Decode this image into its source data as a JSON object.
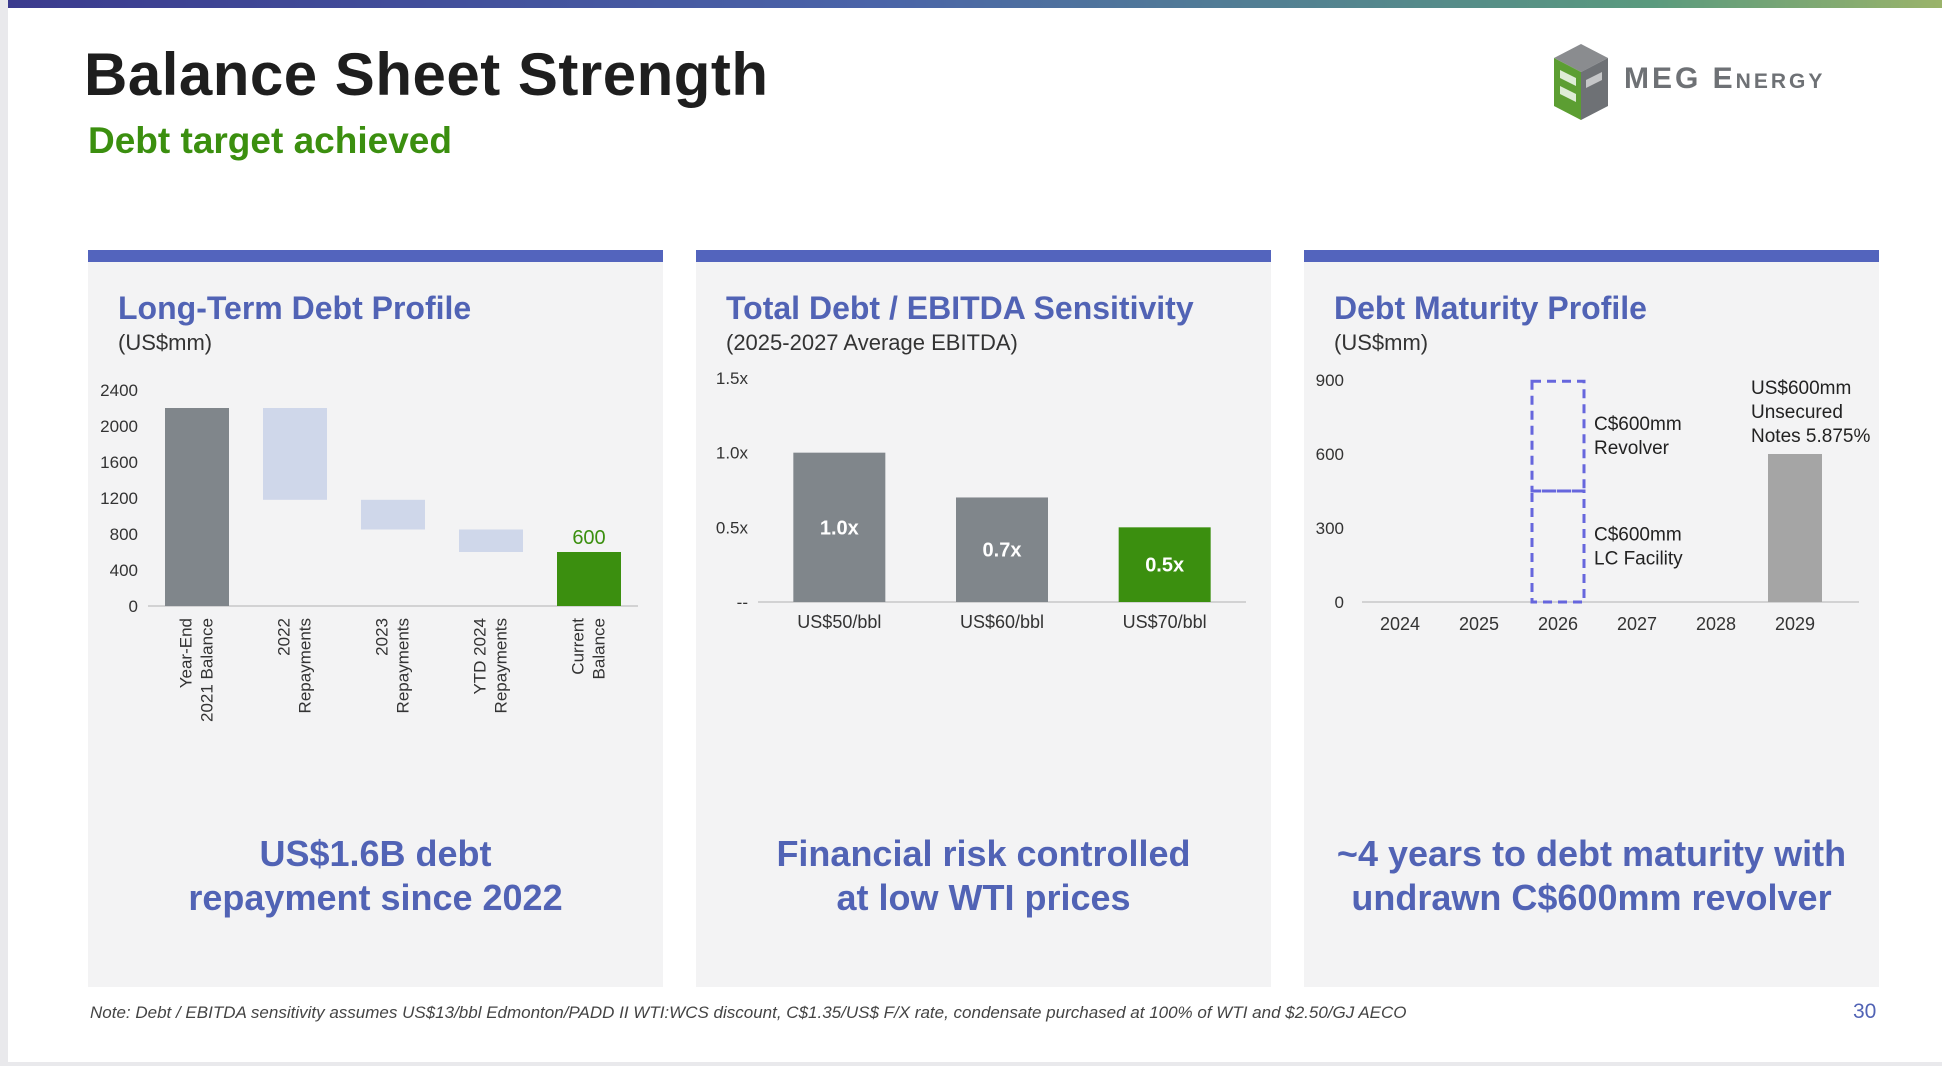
{
  "slide": {
    "title": "Balance Sheet Strength",
    "subtitle": "Debt target achieved",
    "logo_text": "MEG Energy",
    "footnote": "Note: Debt / EBITDA sensitivity assumes US$13/bbl Edmonton/PADD II WTI:WCS discount, C$1.35/US$ F/X rate, condensate purchased at 100% of WTI and $2.50/GJ AECO",
    "page_number": "30",
    "colors": {
      "accent": "#5364bd",
      "title_blue": "#5163b5",
      "green": "#3b8f0f",
      "bar_grey": "#80868b",
      "bar_light": "#cfd7ea",
      "bar_mid_grey": "#a5a5a5",
      "dashed": "#6666dd"
    }
  },
  "panels": [
    {
      "title": "Long-Term Debt Profile",
      "subtitle": "(US$mm)",
      "takeaway": [
        "US$1.6B debt",
        "repayment since 2022"
      ]
    },
    {
      "title": "Total Debt / EBITDA Sensitivity",
      "subtitle": "(2025-2027 Average EBITDA)",
      "takeaway": [
        "Financial risk controlled",
        "at low WTI prices"
      ]
    },
    {
      "title": "Debt Maturity Profile",
      "subtitle": "(US$mm)",
      "takeaway": [
        "~4 years to debt maturity with",
        "undrawn C$600mm revolver"
      ]
    }
  ],
  "chart_data": [
    {
      "type": "bar",
      "subtype": "waterfall",
      "categories": [
        "Year-End 2021 Balance",
        "2022 Repayments",
        "2023 Repayments",
        "YTD 2024 Repayments",
        "Current Balance"
      ],
      "category_lines": [
        [
          "Year-End",
          "2021 Balance"
        ],
        [
          "2022",
          "Repayments"
        ],
        [
          "2023",
          "Repayments"
        ],
        [
          "YTD 2024",
          "Repayments"
        ],
        [
          "Current",
          "Balance"
        ]
      ],
      "bars": [
        {
          "start": 0,
          "end": 2200,
          "kind": "total"
        },
        {
          "start": 1180,
          "end": 2200,
          "kind": "step"
        },
        {
          "start": 850,
          "end": 1180,
          "kind": "step"
        },
        {
          "start": 600,
          "end": 850,
          "kind": "step"
        },
        {
          "start": 0,
          "end": 600,
          "kind": "current",
          "label": "600"
        }
      ],
      "yticks": [
        0,
        400,
        800,
        1200,
        1600,
        2000,
        2400
      ],
      "ylim": [
        0,
        2400
      ],
      "grid": false
    },
    {
      "type": "bar",
      "categories": [
        "US$50/bbl",
        "US$60/bbl",
        "US$70/bbl"
      ],
      "values": [
        1.0,
        0.7,
        0.5
      ],
      "labels": [
        "1.0x",
        "0.7x",
        "0.5x"
      ],
      "highlight_index": 2,
      "ytick_values": [
        0,
        0.5,
        1.0,
        1.5
      ],
      "ytick_labels": [
        "--",
        "0.5x",
        "1.0x",
        "1.5x"
      ],
      "ylim": [
        0,
        1.5
      ],
      "grid": false
    },
    {
      "type": "bar",
      "categories": [
        "2024",
        "2025",
        "2026",
        "2027",
        "2028",
        "2029"
      ],
      "values": [
        0,
        0,
        0,
        0,
        0,
        600
      ],
      "yticks": [
        0,
        300,
        600,
        900
      ],
      "ylim": [
        0,
        900
      ],
      "undrawn_facility": {
        "category": "2026",
        "segments": [
          {
            "start": 0,
            "end": 450,
            "label": [
              "C$600mm",
              "LC Facility"
            ]
          },
          {
            "start": 450,
            "end": 895,
            "label": [
              "C$600mm",
              "Revolver"
            ]
          }
        ]
      },
      "annotations": [
        {
          "category": "2029",
          "text": [
            "US$600mm",
            "Unsecured",
            "Notes 5.875%"
          ]
        }
      ],
      "grid": false
    }
  ]
}
